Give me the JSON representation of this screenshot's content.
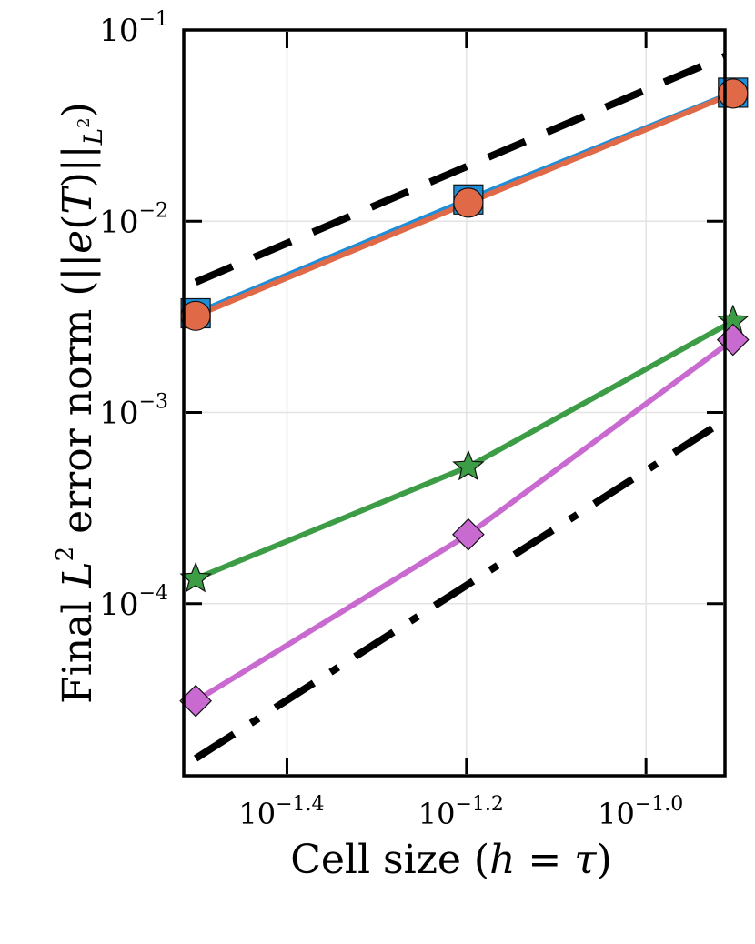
{
  "chart_data": {
    "type": "line",
    "xscale": "log",
    "yscale": "log",
    "xlabel": "Cell size (h = τ)",
    "ylabel": "Final L² error norm (||e(T)||_L²)",
    "ylabel_parts": {
      "pre": "Final ",
      "L": "L",
      "sup": "2",
      "mid": " error norm (||",
      "e": "e",
      "paren_open": "(",
      "T": "T",
      "paren_close": ")",
      "norm_close": "||",
      "L2": "L",
      "sub_sup": "2",
      "end": ")"
    },
    "xlabel_parts": {
      "pre": "Cell size (",
      "h": "h",
      "eq": " = ",
      "tau": "τ",
      "end": ")"
    },
    "xlim_log10": [
      -1.515,
      -0.912
    ],
    "ylim_log10": [
      -4.9,
      -1.0
    ],
    "grid": true,
    "xticks": [
      {
        "log10": -1.4,
        "base": "10",
        "exp": "−1.4"
      },
      {
        "log10": -1.2,
        "base": "10",
        "exp": "−1.2"
      },
      {
        "log10": -1.0,
        "base": "10",
        "exp": "−1.0"
      }
    ],
    "yticks": [
      {
        "log10": -1,
        "base": "10",
        "exp": "−1"
      },
      {
        "log10": -2,
        "base": "10",
        "exp": "−2"
      },
      {
        "log10": -3,
        "base": "10",
        "exp": "−3"
      },
      {
        "log10": -4,
        "base": "10",
        "exp": "−4"
      }
    ],
    "x": [
      0.0315,
      0.0634,
      0.125
    ],
    "series": [
      {
        "name": "series-1",
        "color": "#1f8ed8",
        "marker": "square",
        "values": [
          0.0033,
          0.013,
          0.047
        ]
      },
      {
        "name": "series-2",
        "color": "#e06a48",
        "marker": "circle",
        "values": [
          0.0032,
          0.0125,
          0.0465
        ]
      },
      {
        "name": "series-3",
        "color": "#3d9d46",
        "marker": "star",
        "values": [
          0.000135,
          0.00052,
          0.003
        ]
      },
      {
        "name": "series-4",
        "color": "#c96ad1",
        "marker": "diamond",
        "values": [
          3.1e-05,
          0.00023,
          0.0024
        ]
      }
    ],
    "reference_lines": [
      {
        "name": "order-2-reference",
        "style": "dashed",
        "color": "#000000",
        "x": [
          0.0315,
          0.125
        ],
        "values": [
          0.0048,
          0.076
        ]
      },
      {
        "name": "order-3-reference",
        "style": "dashdot",
        "color": "#000000",
        "x": [
          0.0315,
          0.125
        ],
        "values": [
          1.55e-05,
          0.00097
        ]
      }
    ]
  }
}
